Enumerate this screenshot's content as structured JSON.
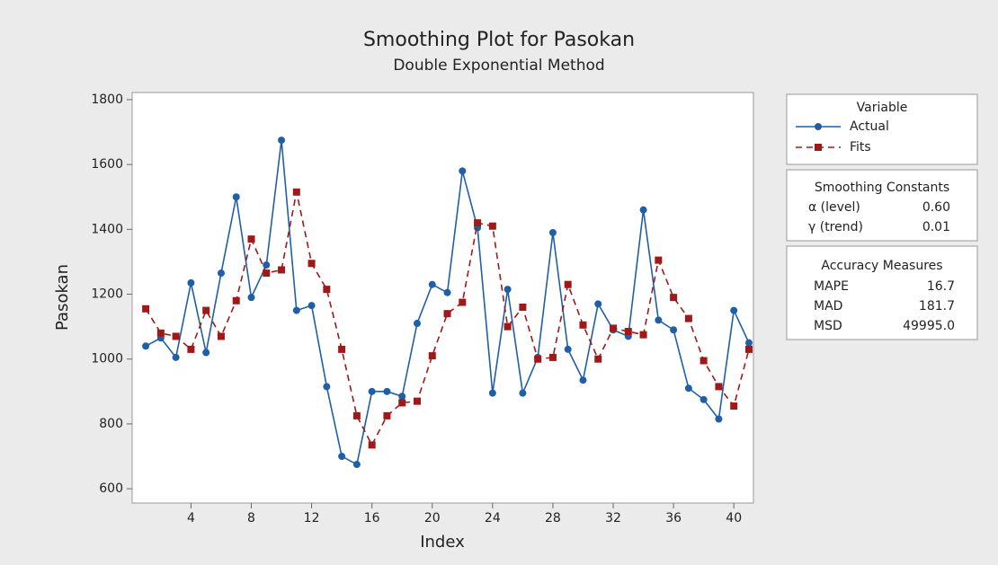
{
  "chart_data": {
    "type": "line",
    "title": "Smoothing Plot for Pasokan",
    "subtitle": "Double Exponential Method",
    "x_label": "Index",
    "y_label": "Pasokan",
    "x": [
      1,
      2,
      3,
      4,
      5,
      6,
      7,
      8,
      9,
      10,
      11,
      12,
      13,
      14,
      15,
      16,
      17,
      18,
      19,
      20,
      21,
      22,
      23,
      24,
      25,
      26,
      27,
      28,
      29,
      30,
      31,
      32,
      33,
      34,
      35,
      36,
      37,
      38,
      39,
      40,
      41
    ],
    "series": [
      {
        "name": "Actual",
        "color": "#1f5fa8",
        "marker": "circle",
        "dashed": false,
        "values": [
          1040,
          1065,
          1005,
          1235,
          1020,
          1265,
          1500,
          1190,
          1290,
          1675,
          1150,
          1165,
          915,
          700,
          675,
          900,
          900,
          885,
          1110,
          1230,
          1205,
          1580,
          1405,
          895,
          1215,
          895,
          1005,
          1390,
          1030,
          935,
          1170,
          1090,
          1070,
          1460,
          1120,
          1090,
          910,
          875,
          815,
          1150,
          1050
        ]
      },
      {
        "name": "Fits",
        "color": "#a01818",
        "marker": "square",
        "dashed": true,
        "values": [
          1155,
          1080,
          1070,
          1030,
          1150,
          1070,
          1180,
          1370,
          1265,
          1275,
          1515,
          1295,
          1215,
          1030,
          825,
          735,
          825,
          865,
          870,
          1010,
          1140,
          1175,
          1420,
          1410,
          1100,
          1160,
          1000,
          1005,
          1230,
          1105,
          1000,
          1095,
          1085,
          1075,
          1305,
          1190,
          1125,
          995,
          915,
          855,
          1030
        ]
      }
    ],
    "xlim": [
      0.1,
      41.3
    ],
    "xticks": [
      4,
      8,
      12,
      16,
      20,
      24,
      28,
      32,
      36,
      40
    ],
    "ylim": [
      556,
      1822
    ],
    "yticks": [
      600,
      800,
      1000,
      1200,
      1400,
      1600,
      1800
    ],
    "grid": false,
    "legend_title": "Variable",
    "smoothing_constants": {
      "title": "Smoothing Constants",
      "rows": [
        [
          "α (level)",
          "0.60"
        ],
        [
          "γ (trend)",
          "0.01"
        ]
      ]
    },
    "accuracy_measures": {
      "title": "Accuracy Measures",
      "rows": [
        [
          "MAPE",
          "16.7"
        ],
        [
          "MAD",
          "181.7"
        ],
        [
          "MSD",
          "49995.0"
        ]
      ]
    }
  }
}
